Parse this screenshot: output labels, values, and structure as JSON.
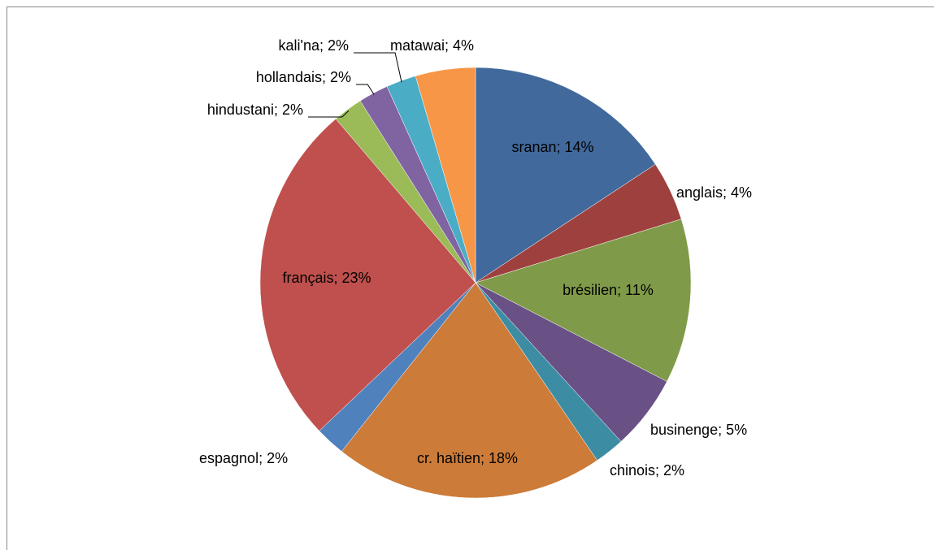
{
  "chart_data": {
    "type": "pie",
    "values": [
      14,
      4,
      11,
      5,
      2,
      18,
      2,
      23,
      2,
      2,
      2,
      4
    ],
    "value_labels": [
      "sranan; 14%",
      "anglais; 4%",
      "brésilien; 11%",
      "businenge; 5%",
      "chinois; 2%",
      "cr. haïtien; 18%",
      "espagnol; 2%",
      "français; 23%",
      "hindustani; 2%",
      "hollandais; 2%",
      "kali'na; 2%",
      "matawai; 4%"
    ],
    "colors": [
      "#41699c",
      "#9e413e",
      "#7f9a48",
      "#695185",
      "#3c8da3",
      "#cc7b38",
      "#4f81bd",
      "#c0504d",
      "#9bbb59",
      "#8064a2",
      "#4bacc6",
      "#f79646"
    ]
  }
}
